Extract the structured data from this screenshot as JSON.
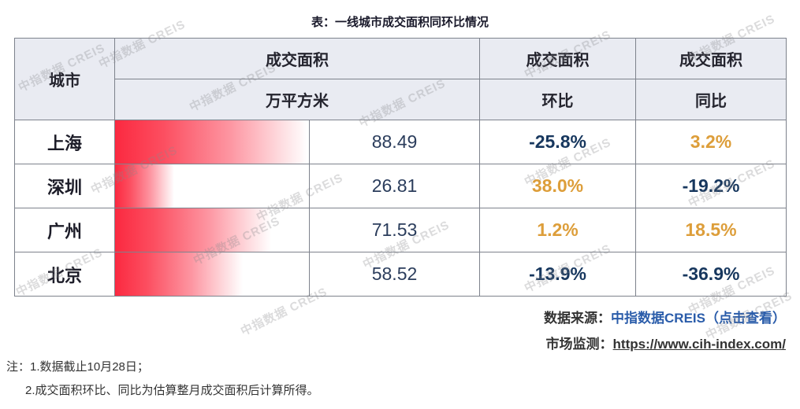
{
  "title": "表：一线城市成交面积同环比情况",
  "watermark": "中指数据 CREIS",
  "chart_data": {
    "type": "table",
    "title": "表：一线城市成交面积同环比情况",
    "columns": [
      "城市",
      "成交面积 万平方米",
      "成交面积 环比",
      "成交面积 同比"
    ],
    "rows": [
      [
        "上海",
        88.49,
        "-25.8%",
        "3.2%"
      ],
      [
        "深圳",
        26.81,
        "38.0%",
        "-19.2%"
      ],
      [
        "广州",
        71.53,
        "1.2%",
        "18.5%"
      ],
      [
        "北京",
        58.52,
        "-13.9%",
        "-36.9%"
      ]
    ],
    "bar_column": "成交面积 万平方米",
    "bar_max": 88.49,
    "legend_position": "none",
    "grid": false
  },
  "table": {
    "headers": {
      "city": "城市",
      "area_group": "成交面积",
      "area_unit": "万平方米",
      "mom_group": "成交面积",
      "mom_label": "环比",
      "yoy_group": "成交面积",
      "yoy_label": "同比"
    },
    "rows": [
      {
        "city": "上海",
        "area": "88.49",
        "mom": "-25.8%",
        "yoy": "3.2%",
        "bar_pct": 99
      },
      {
        "city": "深圳",
        "area": "26.81",
        "mom": "38.0%",
        "yoy": "-19.2%",
        "bar_pct": 30.5
      },
      {
        "city": "广州",
        "area": "71.53",
        "mom": "1.2%",
        "yoy": "18.5%",
        "bar_pct": 80.5
      },
      {
        "city": "北京",
        "area": "58.52",
        "mom": "-13.9%",
        "yoy": "-36.9%",
        "bar_pct": 66
      }
    ]
  },
  "source": {
    "label": "数据来源：",
    "link": "中指数据CREIS（点击查看）"
  },
  "monitor": {
    "label": "市场监测：",
    "url": "https://www.cih-index.com/"
  },
  "notes": [
    "注：1.数据截止10月28日；",
    "2.成交面积环比、同比为估算整月成交面积后计算所得。"
  ],
  "colors": {
    "positive": "#DD9E3A",
    "negative": "#17375E",
    "bar_red": "#FB2940",
    "header_bg": "#E9EBF2",
    "border": "#7D828C",
    "link_blue": "#2A5CAA"
  }
}
